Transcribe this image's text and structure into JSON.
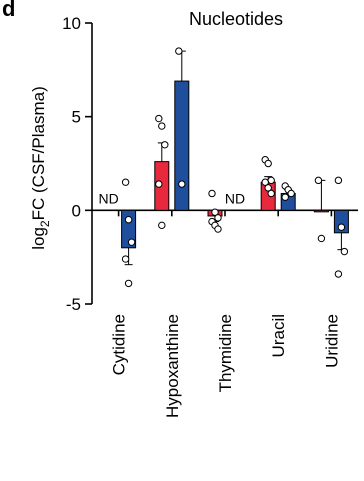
{
  "panel_label": "d",
  "chart_data": {
    "type": "bar",
    "title": "Nucleotides",
    "ylabel_prefix": "log",
    "ylabel_sub": "2",
    "ylabel_suffix": "FC (CSF/Plasma)",
    "ylim": [
      -5,
      10
    ],
    "yticks": [
      10,
      5,
      0,
      -5
    ],
    "ytick_labels": [
      "10",
      "5",
      "0",
      "-5"
    ],
    "categories": [
      "Cytidine",
      "Hypoxanthine",
      "Thymidine",
      "Uracil",
      "Uridine"
    ],
    "nd_label": "ND",
    "colors": {
      "red": "#e8283c",
      "blue": "#1f4e9c"
    },
    "bars": [
      {
        "category": "Cytidine",
        "color": "red",
        "nd": true
      },
      {
        "category": "Cytidine",
        "color": "blue",
        "value": -2.0,
        "err": 0.9,
        "points": [
          1.5,
          -0.5,
          -1.7,
          -2.6,
          -3.9
        ]
      },
      {
        "category": "Hypoxanthine",
        "color": "red",
        "value": 2.6,
        "err": 1.0,
        "points": [
          4.9,
          4.5,
          3.5,
          1.4,
          -0.8
        ]
      },
      {
        "category": "Hypoxanthine",
        "color": "blue",
        "value": 6.9,
        "err": 1.6,
        "points": [
          8.5,
          1.4
        ]
      },
      {
        "category": "Thymidine",
        "color": "red",
        "value": -0.3,
        "err": 0.3,
        "points": [
          0.9,
          -0.1,
          -0.4,
          -0.6,
          -0.8,
          -1.0
        ]
      },
      {
        "category": "Thymidine",
        "color": "blue",
        "nd": true
      },
      {
        "category": "Uracil",
        "color": "red",
        "value": 1.5,
        "err": 0.3,
        "points": [
          2.7,
          2.5,
          1.6,
          1.5,
          1.2,
          0.9
        ]
      },
      {
        "category": "Uracil",
        "color": "blue",
        "value": 0.9,
        "err": 0.2,
        "points": [
          1.3,
          1.1,
          0.9,
          0.7
        ]
      },
      {
        "category": "Uridine",
        "color": "red",
        "value": 0.0,
        "err": 1.6,
        "points": [
          1.6,
          -1.5
        ]
      },
      {
        "category": "Uridine",
        "color": "blue",
        "value": -1.2,
        "err": 0.9,
        "points": [
          1.6,
          -0.9,
          -2.2,
          -3.4
        ]
      }
    ]
  }
}
